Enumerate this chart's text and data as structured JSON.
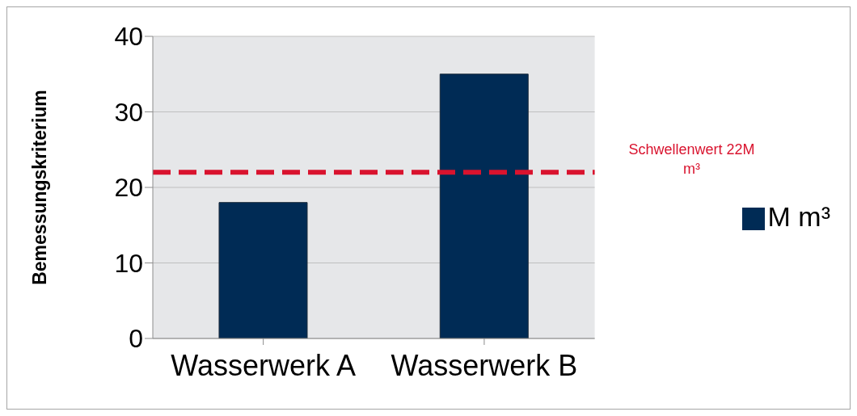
{
  "chart_data": {
    "type": "bar",
    "ylabel": "Bemessungskriterium",
    "categories": [
      "Wasserwerk A",
      "Wasserwerk B"
    ],
    "series": [
      {
        "name": "M m³",
        "color": "#002b55",
        "values": [
          18,
          35
        ]
      }
    ],
    "ylim": [
      0,
      40
    ],
    "yticks": [
      0,
      10,
      20,
      30,
      40
    ],
    "grid": "y",
    "legend": "right",
    "ref_lines": [
      {
        "axis": "y",
        "value": 22,
        "label": "Schwellenwert 22M m³",
        "color": "#d9132e",
        "line_style": "dashed"
      }
    ]
  }
}
